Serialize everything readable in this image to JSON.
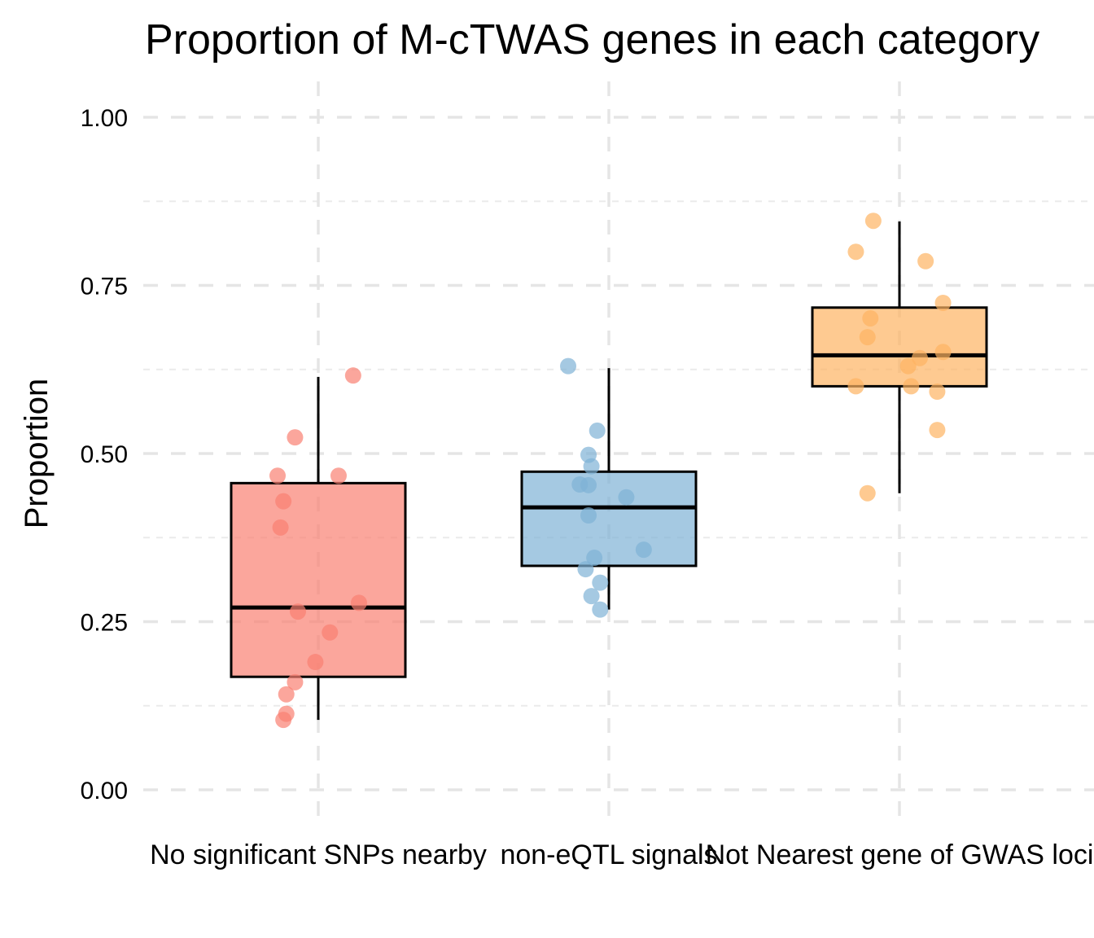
{
  "chart_data": {
    "type": "boxplot",
    "title": "Proportion of M-cTWAS genes in each category",
    "xlabel": "",
    "ylabel": "Proportion",
    "ylim": [
      -0.05,
      1.05
    ],
    "yticks": [
      0.0,
      0.25,
      0.5,
      0.75,
      1.0
    ],
    "ytick_labels": [
      "0.00",
      "0.25",
      "0.50",
      "0.75",
      "1.00"
    ],
    "grid": true,
    "legend": "none",
    "categories": [
      "No significant SNPs nearby",
      "non-eQTL signals",
      "Not Nearest gene of GWAS loci"
    ],
    "series": [
      {
        "name": "No significant SNPs nearby",
        "color": "#FA8072",
        "box": {
          "q1": 0.168,
          "median": 0.271,
          "q3": 0.456,
          "whisker_low": 0.104,
          "whisker_high": 0.614
        },
        "points": [
          {
            "x_jitter": 0.12,
            "y": 0.616
          },
          {
            "x_jitter": -0.08,
            "y": 0.524
          },
          {
            "x_jitter": -0.14,
            "y": 0.467
          },
          {
            "x_jitter": 0.07,
            "y": 0.467
          },
          {
            "x_jitter": -0.12,
            "y": 0.429
          },
          {
            "x_jitter": -0.13,
            "y": 0.39
          },
          {
            "x_jitter": 0.14,
            "y": 0.278
          },
          {
            "x_jitter": -0.07,
            "y": 0.265
          },
          {
            "x_jitter": 0.04,
            "y": 0.234
          },
          {
            "x_jitter": -0.01,
            "y": 0.19
          },
          {
            "x_jitter": -0.08,
            "y": 0.16
          },
          {
            "x_jitter": -0.11,
            "y": 0.142
          },
          {
            "x_jitter": -0.11,
            "y": 0.113
          },
          {
            "x_jitter": -0.12,
            "y": 0.104
          }
        ]
      },
      {
        "name": "non-eQTL signals",
        "color": "#7FB2D5",
        "box": {
          "q1": 0.333,
          "median": 0.42,
          "q3": 0.473,
          "whisker_low": 0.268,
          "whisker_high": 0.627
        },
        "points": [
          {
            "x_jitter": -0.14,
            "y": 0.63
          },
          {
            "x_jitter": -0.04,
            "y": 0.534
          },
          {
            "x_jitter": -0.07,
            "y": 0.498
          },
          {
            "x_jitter": -0.06,
            "y": 0.481
          },
          {
            "x_jitter": -0.1,
            "y": 0.454
          },
          {
            "x_jitter": -0.07,
            "y": 0.453
          },
          {
            "x_jitter": 0.06,
            "y": 0.435
          },
          {
            "x_jitter": -0.07,
            "y": 0.408
          },
          {
            "x_jitter": 0.12,
            "y": 0.357
          },
          {
            "x_jitter": -0.05,
            "y": 0.345
          },
          {
            "x_jitter": -0.08,
            "y": 0.328
          },
          {
            "x_jitter": -0.03,
            "y": 0.308
          },
          {
            "x_jitter": -0.06,
            "y": 0.288
          },
          {
            "x_jitter": -0.03,
            "y": 0.268
          }
        ]
      },
      {
        "name": "Not Nearest gene of GWAS loci",
        "color": "#FDB462",
        "box": {
          "q1": 0.6,
          "median": 0.646,
          "q3": 0.717,
          "whisker_low": 0.441,
          "whisker_high": 0.845
        },
        "points": [
          {
            "x_jitter": -0.09,
            "y": 0.846
          },
          {
            "x_jitter": -0.15,
            "y": 0.8
          },
          {
            "x_jitter": 0.09,
            "y": 0.786
          },
          {
            "x_jitter": 0.15,
            "y": 0.724
          },
          {
            "x_jitter": -0.1,
            "y": 0.701
          },
          {
            "x_jitter": -0.11,
            "y": 0.673
          },
          {
            "x_jitter": 0.07,
            "y": 0.642
          },
          {
            "x_jitter": 0.03,
            "y": 0.63
          },
          {
            "x_jitter": 0.15,
            "y": 0.651
          },
          {
            "x_jitter": -0.15,
            "y": 0.6
          },
          {
            "x_jitter": 0.04,
            "y": 0.6
          },
          {
            "x_jitter": 0.13,
            "y": 0.592
          },
          {
            "x_jitter": 0.13,
            "y": 0.535
          },
          {
            "x_jitter": -0.11,
            "y": 0.441
          }
        ]
      }
    ]
  }
}
